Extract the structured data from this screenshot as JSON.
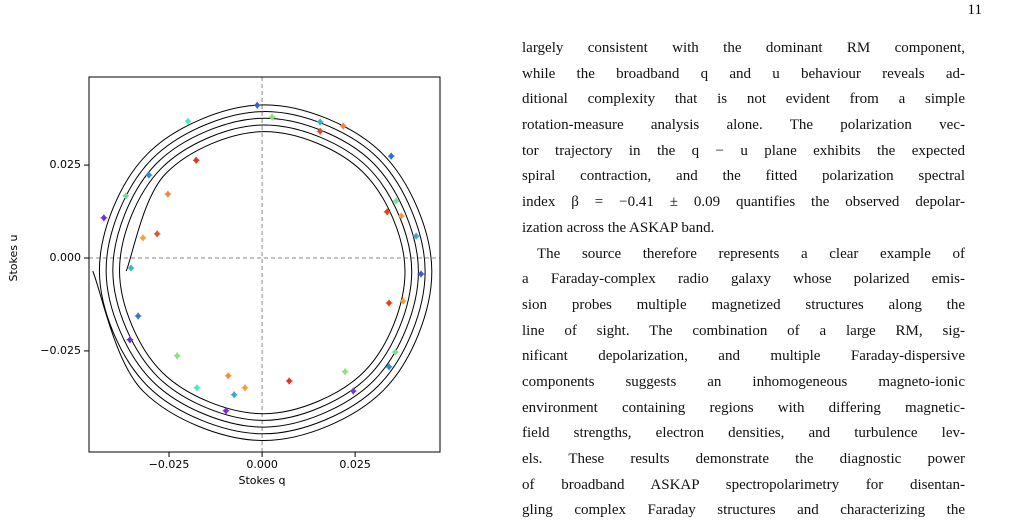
{
  "page_number": "11",
  "chart_data": {
    "type": "scatter",
    "xlabel": "Stokes q",
    "ylabel": "Stokes u",
    "xlim": [
      -0.0465,
      0.0478
    ],
    "ylim": [
      -0.0522,
      0.0487
    ],
    "xticks": [
      {
        "value": -0.025,
        "label": "−0.025"
      },
      {
        "value": 0,
        "label": "0.000"
      },
      {
        "value": 0.025,
        "label": "0.025"
      }
    ],
    "yticks": [
      {
        "value": -0.025,
        "label": "−0.025"
      },
      {
        "value": 0,
        "label": "0.000"
      },
      {
        "value": 0.025,
        "label": "0.025"
      }
    ],
    "zero_lines": true,
    "series": [
      {
        "type": "line",
        "color": "#000000",
        "x": [
          -0.0455,
          -0.0319,
          0.0005,
          0.0326,
          0.0456,
          0.0322,
          0.0005,
          -0.0309,
          -0.0437,
          -0.0306,
          0.0005,
          0.0313,
          0.0438,
          0.031,
          0.0005,
          -0.0296,
          -0.0419,
          -0.0293,
          0.0005,
          0.03,
          0.042,
          0.0297,
          0.0005,
          -0.0284,
          -0.0401,
          -0.028,
          0.0005,
          0.0287,
          0.0402,
          0.0284,
          0.0005,
          -0.0271,
          -0.0383,
          -0.0268,
          0.0005,
          0.0275,
          0.0384,
          0.0271,
          0.0005,
          -0.0258,
          -0.0365
        ],
        "y": [
          -0.0035,
          -0.0359,
          -0.0491,
          -0.0356,
          -0.0035,
          0.0282,
          0.0412,
          0.0279,
          -0.0035,
          -0.0346,
          -0.0473,
          -0.0343,
          -0.0035,
          0.027,
          0.0394,
          0.0266,
          -0.0035,
          -0.0333,
          -0.0455,
          -0.033,
          -0.0035,
          0.0257,
          0.0376,
          0.0254,
          -0.0035,
          -0.032,
          -0.0437,
          -0.0317,
          -0.0035,
          0.0244,
          0.0358,
          0.0241,
          -0.0035,
          -0.0308,
          -0.0419,
          -0.0305,
          -0.0035,
          0.0231,
          0.034,
          0.0228,
          -0.0035
        ]
      },
      {
        "type": "scatter",
        "error": 0.0009,
        "x": [
          -0.0013,
          -0.0199,
          0.0027,
          -0.0177,
          0.0218,
          0.0156,
          0.0156,
          0.0347,
          -0.0304,
          -0.0253,
          -0.0366,
          -0.0425,
          -0.0282,
          -0.032,
          -0.0352,
          0.036,
          0.0336,
          0.0374,
          0.0414,
          0.0427,
          0.0341,
          0.0379,
          -0.0333,
          -0.0355,
          -0.0228,
          0.0358,
          0.0341,
          0.0223,
          -0.0091,
          0.0073,
          -0.0046,
          -0.0175,
          -0.0075,
          0.0245,
          -0.0097
        ],
        "y": [
          0.0411,
          0.0368,
          0.0379,
          0.0263,
          0.0355,
          0.0366,
          0.0341,
          0.0274,
          0.0223,
          0.0172,
          0.0167,
          0.0108,
          0.0065,
          0.0054,
          -0.0027,
          0.0153,
          0.0124,
          0.0113,
          0.0059,
          -0.0043,
          -0.0121,
          -0.0116,
          -0.0156,
          -0.022,
          -0.0263,
          -0.0253,
          -0.0293,
          -0.0306,
          -0.0317,
          -0.0331,
          -0.0349,
          -0.0349,
          -0.0368,
          -0.0358,
          -0.0411
        ],
        "colors": [
          "#3a5fd9",
          "#4de8c8",
          "#8ee07a",
          "#e8341c",
          "#f0883a",
          "#36b0c8",
          "#e04a2a",
          "#2a6ae0",
          "#2e8ad0",
          "#f08a3a",
          "#6ed8a0",
          "#7a2ae0",
          "#e8502a",
          "#f0a040",
          "#36b8d8",
          "#7ae0a0",
          "#e8401c",
          "#f09a40",
          "#38a8e0",
          "#3a58e0",
          "#e8401c",
          "#f0a040",
          "#2e7ad0",
          "#6a2ae0",
          "#8ee07a",
          "#7ae08a",
          "#2e8ad0",
          "#8ee07a",
          "#f09040",
          "#e8341c",
          "#f0a040",
          "#4de8c8",
          "#36a8d8",
          "#6a3ae0",
          "#7a2ae0"
        ]
      }
    ]
  },
  "text": {
    "paragraphs": [
      [
        "largely consistent with the dominant RM component,",
        "while the broadband q and u behaviour reveals ad-",
        "ditional complexity that is not evident from a simple",
        "rotation-measure analysis alone. The polarization vec-",
        "tor trajectory in the q − u plane exhibits the expected",
        "spiral contraction, and the fitted polarization spectral",
        "index β = −0.41 ± 0.09 quantifies the observed depolar-",
        "ization across the ASKAP band."
      ],
      [
        "The source therefore represents a clear example of",
        "a Faraday-complex radio galaxy whose polarized emis-",
        "sion probes multiple magnetized structures along the",
        "line of sight. The combination of a large RM, sig-",
        "nificant depolarization, and multiple Faraday-dispersive",
        "components suggests an inhomogeneous magneto-ionic",
        "environment containing regions with differing magnetic-",
        "field strengths, electron densities, and turbulence lev-",
        "els. These results demonstrate the diagnostic power",
        "of broadband ASKAP spectropolarimetry for disentan-",
        "gling complex Faraday structures and characterizing the"
      ]
    ]
  }
}
